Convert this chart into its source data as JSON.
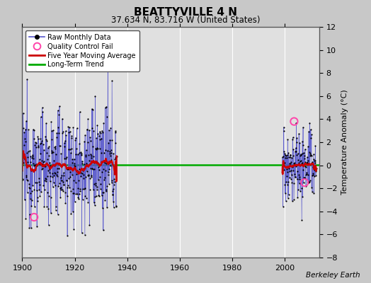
{
  "title": "BEATTYVILLE 4 N",
  "subtitle": "37.634 N, 83.716 W (United States)",
  "ylabel": "Temperature Anomaly (°C)",
  "credit": "Berkeley Earth",
  "xlim": [
    1900,
    2013
  ],
  "ylim": [
    -8,
    12
  ],
  "yticks": [
    -8,
    -6,
    -4,
    -2,
    0,
    2,
    4,
    6,
    8,
    10,
    12
  ],
  "xticks": [
    1900,
    1920,
    1940,
    1960,
    1980,
    2000
  ],
  "fig_bg_color": "#c8c8c8",
  "plot_bg_color": "#e0e0e0",
  "grid_color": "#ffffff",
  "raw_line_color": "#5555cc",
  "raw_dot_color": "#000000",
  "moving_avg_color": "#cc0000",
  "trend_color": "#00aa00",
  "qc_fail_color": "#ff44aa",
  "period1_start": 1900,
  "period1_end": 1935,
  "period2_start": 1999,
  "period2_end": 2011,
  "long_term_trend_y": 0.05,
  "qc_t": [
    1904.5,
    2003.5,
    2007.5
  ],
  "qc_v": [
    -4.5,
    3.8,
    -1.5
  ]
}
